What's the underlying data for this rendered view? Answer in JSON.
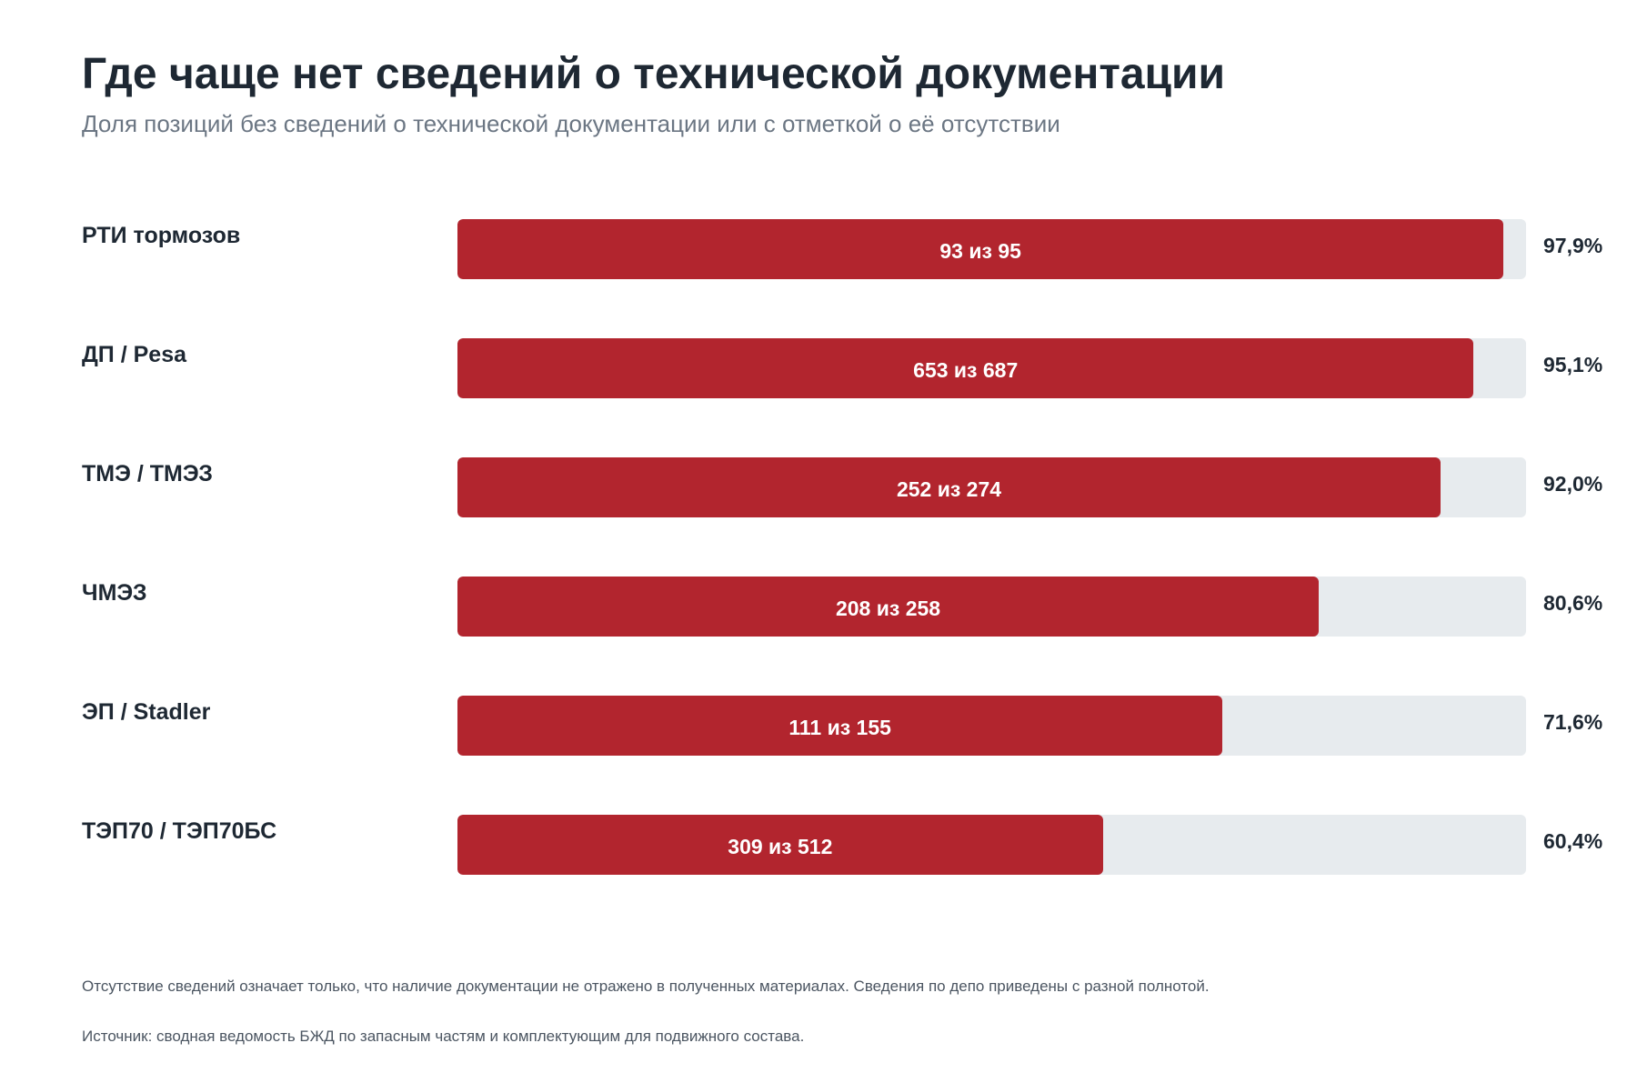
{
  "header": {
    "title": "Где чаще нет сведений о технической документации",
    "subtitle": "Доля позиций без сведений о технической документации или с отметкой о её отсутствии"
  },
  "colors": {
    "bar_fill": "#b2252e",
    "bar_track": "#e7ebee",
    "text_main": "#1e2833",
    "text_muted": "#6b7683"
  },
  "chart_data": {
    "type": "bar",
    "orientation": "horizontal",
    "title": "Где чаще нет сведений о технической документации",
    "subtitle": "Доля позиций без сведений о технической документации или с отметкой о её отсутствии",
    "xlim": [
      0,
      100
    ],
    "grid": false,
    "legend": "none",
    "categories": [
      "РТИ тормозов",
      "ДП / Pesa",
      "ТМЭ / ТМЭЗ",
      "ЧМЭЗ",
      "ЭП / Stadler",
      "ТЭП70 / ТЭП70БС"
    ],
    "values": [
      97.9,
      95.1,
      92.0,
      80.6,
      71.6,
      60.4
    ],
    "value_labels": [
      "97,9%",
      "95,1%",
      "92,0%",
      "80,6%",
      "71,6%",
      "60,4%"
    ],
    "count_labels": [
      "93 из 95",
      "653 из 687",
      "252 из 274",
      "208 из 258",
      "111 из 155",
      "309 из 512"
    ]
  },
  "footer": {
    "disclaimer": "Отсутствие сведений означает только, что наличие документации не отражено в полученных материалах. Сведения по депо приведены с разной полнотой.",
    "source": "Источник: сводная ведомость БЖД по запасным частям и комплектующим для подвижного состава."
  }
}
